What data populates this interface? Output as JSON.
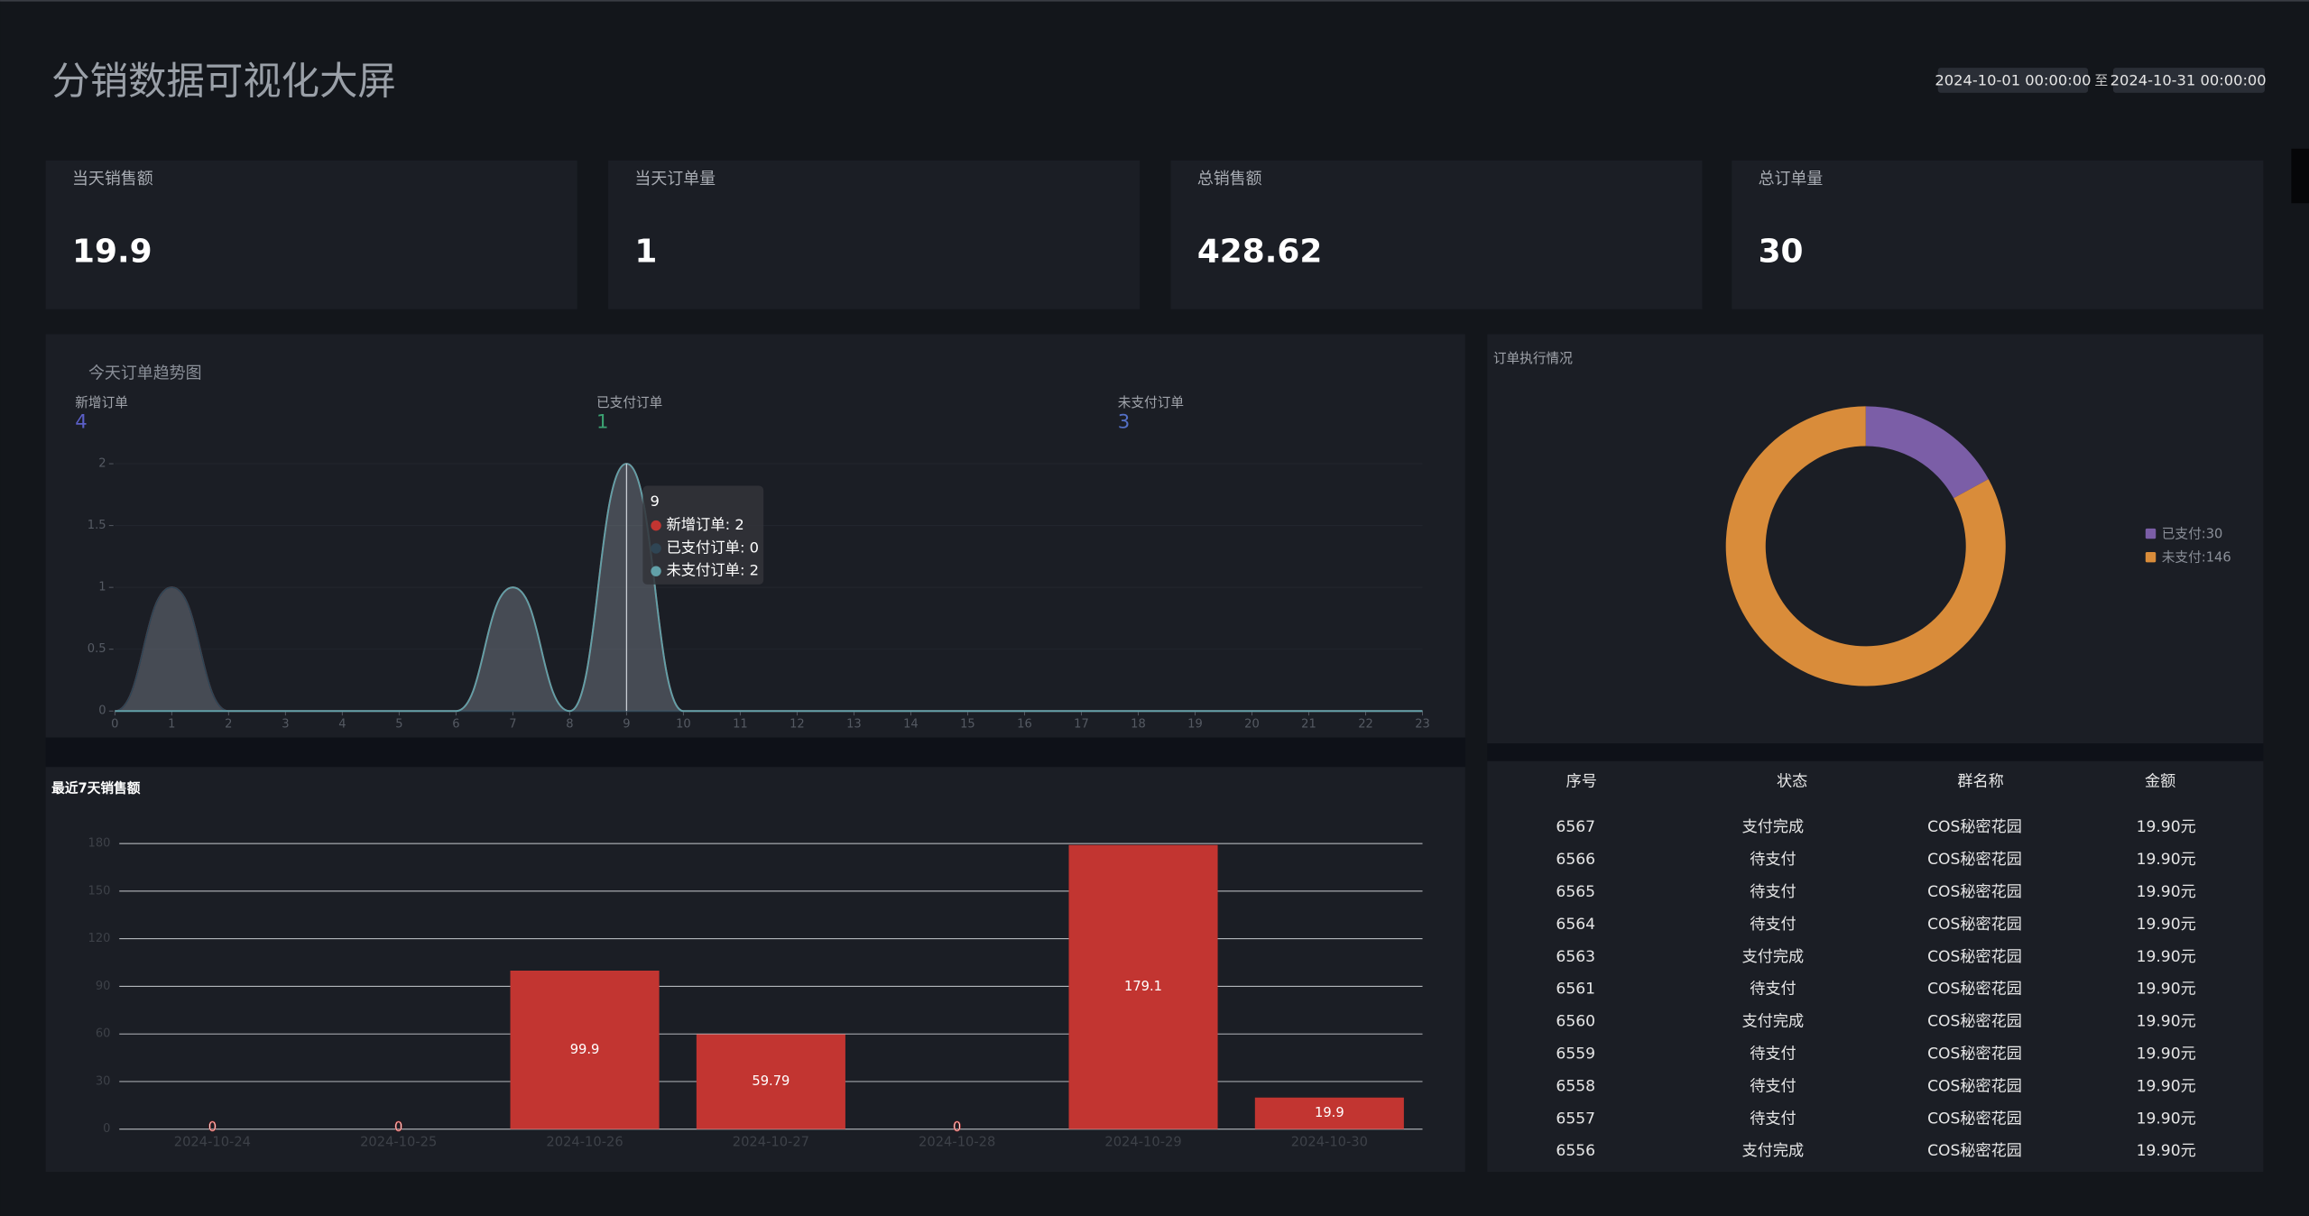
{
  "header": {
    "title": "分销数据可视化大屏",
    "date_start": "2024-10-01 00:00:00",
    "date_separator": "至",
    "date_end": "2024-10-31 00:00:00"
  },
  "kpis": [
    {
      "label": "当天销售额",
      "value": 19.9
    },
    {
      "label": "当天订单量",
      "value": 1
    },
    {
      "label": "总销售额",
      "value": 428.62
    },
    {
      "label": "总订单量",
      "value": 30
    }
  ],
  "chart_data": [
    {
      "type": "line",
      "title": "今天订单趋势图",
      "summary": [
        {
          "label": "新增订单",
          "value": 4,
          "color": "#5b5fc7"
        },
        {
          "label": "已支付订单",
          "value": 1,
          "color": "#3ba272"
        },
        {
          "label": "未支付订单",
          "value": 3,
          "color": "#5470c6"
        }
      ],
      "x": [
        0,
        1,
        2,
        3,
        4,
        5,
        6,
        7,
        8,
        9,
        10,
        11,
        12,
        13,
        14,
        15,
        16,
        17,
        18,
        19,
        20,
        21,
        22,
        23
      ],
      "xlim": [
        0,
        23
      ],
      "xticks": [
        0,
        1,
        2,
        3,
        4,
        5,
        6,
        7,
        8,
        9,
        10,
        11,
        12,
        13,
        14,
        15,
        16,
        17,
        18,
        19,
        20,
        21,
        22,
        23
      ],
      "ylim": [
        0,
        2
      ],
      "yticks": [
        0,
        0.5,
        1,
        1.5,
        2
      ],
      "series": [
        {
          "name": "新增订单",
          "color": "#c23531",
          "values": [
            0,
            1,
            0,
            0,
            0,
            0,
            0,
            1,
            0,
            2,
            0,
            0,
            0,
            0,
            0,
            0,
            0,
            0,
            0,
            0,
            0,
            0,
            0,
            0
          ]
        },
        {
          "name": "已支付订单",
          "color": "#2f4554",
          "values": [
            0,
            1,
            0,
            0,
            0,
            0,
            0,
            0,
            0,
            0,
            0,
            0,
            0,
            0,
            0,
            0,
            0,
            0,
            0,
            0,
            0,
            0,
            0,
            0
          ]
        },
        {
          "name": "未支付订单",
          "color": "#61a0a8",
          "values": [
            0,
            0,
            0,
            0,
            0,
            0,
            0,
            1,
            0,
            2,
            0,
            0,
            0,
            0,
            0,
            0,
            0,
            0,
            0,
            0,
            0,
            0,
            0,
            0
          ]
        }
      ],
      "tooltip": {
        "title": 9,
        "items": [
          "新增订单: 2",
          "已支付订单: 0",
          "未支付订单: 2"
        ]
      }
    },
    {
      "type": "pie",
      "title": "订单执行情况",
      "values": [
        30,
        146
      ],
      "colors": [
        "#7b5ea7",
        "#d98c3a"
      ],
      "legend_labels": [
        "已支付:30",
        "未支付:146"
      ]
    },
    {
      "type": "bar",
      "title": "最近7天销售额",
      "categories": [
        "2024-10-24",
        "2024-10-25",
        "2024-10-26",
        "2024-10-27",
        "2024-10-28",
        "2024-10-29",
        "2024-10-30"
      ],
      "values": [
        0,
        0,
        99.9,
        59.79,
        0,
        179.1,
        19.9
      ],
      "color": "#c23531",
      "ylim": [
        0,
        180
      ],
      "yticks": [
        0,
        30,
        60,
        90,
        120,
        150,
        180
      ],
      "grid": true
    }
  ],
  "table": {
    "columns": [
      "序号",
      "状态",
      "群名称",
      "金额"
    ],
    "rows": [
      [
        6567,
        "支付完成",
        "COS秘密花园",
        "19.90元"
      ],
      [
        6566,
        "待支付",
        "COS秘密花园",
        "19.90元"
      ],
      [
        6565,
        "待支付",
        "COS秘密花园",
        "19.90元"
      ],
      [
        6564,
        "待支付",
        "COS秘密花园",
        "19.90元"
      ],
      [
        6563,
        "支付完成",
        "COS秘密花园",
        "19.90元"
      ],
      [
        6561,
        "待支付",
        "COS秘密花园",
        "19.90元"
      ],
      [
        6560,
        "支付完成",
        "COS秘密花园",
        "19.90元"
      ],
      [
        6559,
        "待支付",
        "COS秘密花园",
        "19.90元"
      ],
      [
        6558,
        "待支付",
        "COS秘密花园",
        "19.90元"
      ],
      [
        6557,
        "待支付",
        "COS秘密花园",
        "19.90元"
      ],
      [
        6556,
        "支付完成",
        "COS秘密花园",
        "19.90元"
      ]
    ]
  }
}
